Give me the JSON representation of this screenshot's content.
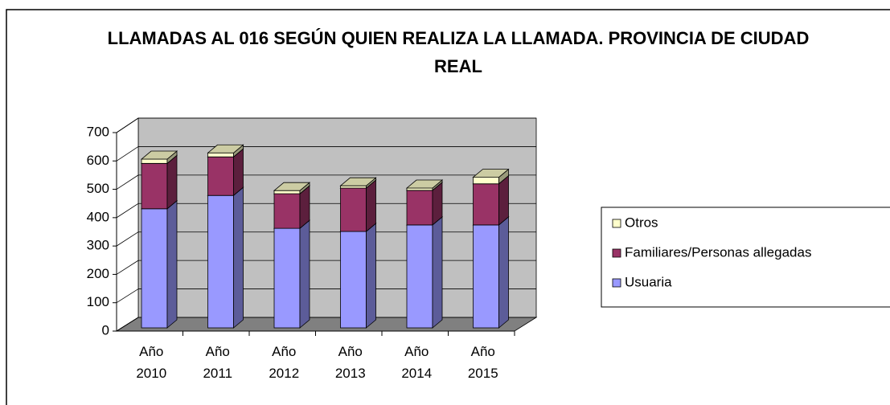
{
  "chart_data": {
    "type": "bar",
    "stacked": true,
    "title": "LLAMADAS AL 016 SEGÚN QUIEN REALIZA LA LLAMADA. PROVINCIA DE CIUDAD REAL",
    "categories": [
      "Año 2010",
      "Año 2011",
      "Año 2012",
      "Año 2013",
      "Año 2014",
      "Año 2015"
    ],
    "series": [
      {
        "name": "Usuaria",
        "color": "#9999ff",
        "values": [
          420,
          467,
          351,
          340,
          363,
          363
        ]
      },
      {
        "name": "Familiares/Personas allegadas",
        "color": "#993366",
        "values": [
          160,
          136,
          122,
          153,
          122,
          145
        ]
      },
      {
        "name": "Otros",
        "color": "#ffffcc",
        "values": [
          15,
          14,
          11,
          8,
          8,
          23
        ]
      }
    ],
    "ylim": [
      0,
      700
    ],
    "yticks": [
      0,
      100,
      200,
      300,
      400,
      500,
      600,
      700
    ],
    "grid": true,
    "legend": "right"
  }
}
